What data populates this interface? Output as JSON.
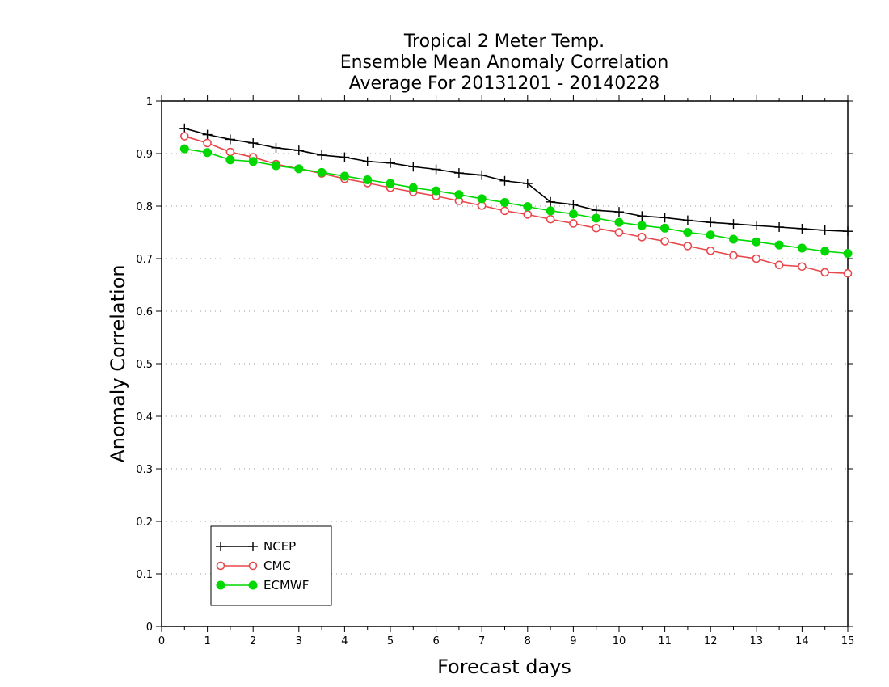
{
  "chart_data": {
    "type": "line",
    "title": [
      "Tropical 2 Meter Temp.",
      "Ensemble Mean Anomaly Correlation",
      "Average For 20131201 - 20140228"
    ],
    "xlabel": "Forecast days",
    "ylabel": "Anomaly Correlation",
    "xlim": [
      0,
      15
    ],
    "ylim": [
      0,
      1
    ],
    "x_ticks": [
      "0",
      "1",
      "2",
      "3",
      "4",
      "5",
      "6",
      "7",
      "8",
      "9",
      "10",
      "11",
      "12",
      "13",
      "14",
      "15"
    ],
    "y_ticks": [
      "0",
      "0.1",
      "0.2",
      "0.3",
      "0.4",
      "0.5",
      "0.6",
      "0.7",
      "0.8",
      "0.9",
      "1"
    ],
    "grid": "horizontal dotted",
    "legend_position": "bottom-left",
    "x": [
      0.5,
      1,
      1.5,
      2,
      2.5,
      3,
      3.5,
      4,
      4.5,
      5,
      5.5,
      6,
      6.5,
      7,
      7.5,
      8,
      8.5,
      9,
      9.5,
      10,
      10.5,
      11,
      11.5,
      12,
      12.5,
      13,
      13.5,
      14,
      14.5,
      15
    ],
    "series": [
      {
        "name": "NCEP",
        "color": "#000000",
        "marker": "plus",
        "values": [
          0.948,
          0.936,
          0.927,
          0.92,
          0.911,
          0.906,
          0.897,
          0.893,
          0.885,
          0.882,
          0.875,
          0.87,
          0.863,
          0.859,
          0.848,
          0.843,
          0.808,
          0.803,
          0.792,
          0.789,
          0.781,
          0.778,
          0.773,
          0.769,
          0.766,
          0.763,
          0.76,
          0.757,
          0.754,
          0.752
        ]
      },
      {
        "name": "CMC",
        "color": "#e8474b",
        "marker": "open-circle",
        "values": [
          0.933,
          0.92,
          0.903,
          0.893,
          0.88,
          0.871,
          0.862,
          0.852,
          0.844,
          0.835,
          0.827,
          0.819,
          0.81,
          0.801,
          0.791,
          0.784,
          0.775,
          0.767,
          0.758,
          0.75,
          0.741,
          0.733,
          0.724,
          0.715,
          0.706,
          0.7,
          0.688,
          0.685,
          0.674,
          0.672
        ]
      },
      {
        "name": "ECMWF",
        "color": "#00d800",
        "marker": "filled-circle",
        "values": [
          0.909,
          0.902,
          0.888,
          0.885,
          0.877,
          0.871,
          0.864,
          0.857,
          0.85,
          0.843,
          0.835,
          0.829,
          0.822,
          0.814,
          0.807,
          0.799,
          0.791,
          0.785,
          0.777,
          0.769,
          0.763,
          0.758,
          0.75,
          0.745,
          0.737,
          0.732,
          0.726,
          0.72,
          0.714,
          0.71
        ]
      }
    ]
  }
}
